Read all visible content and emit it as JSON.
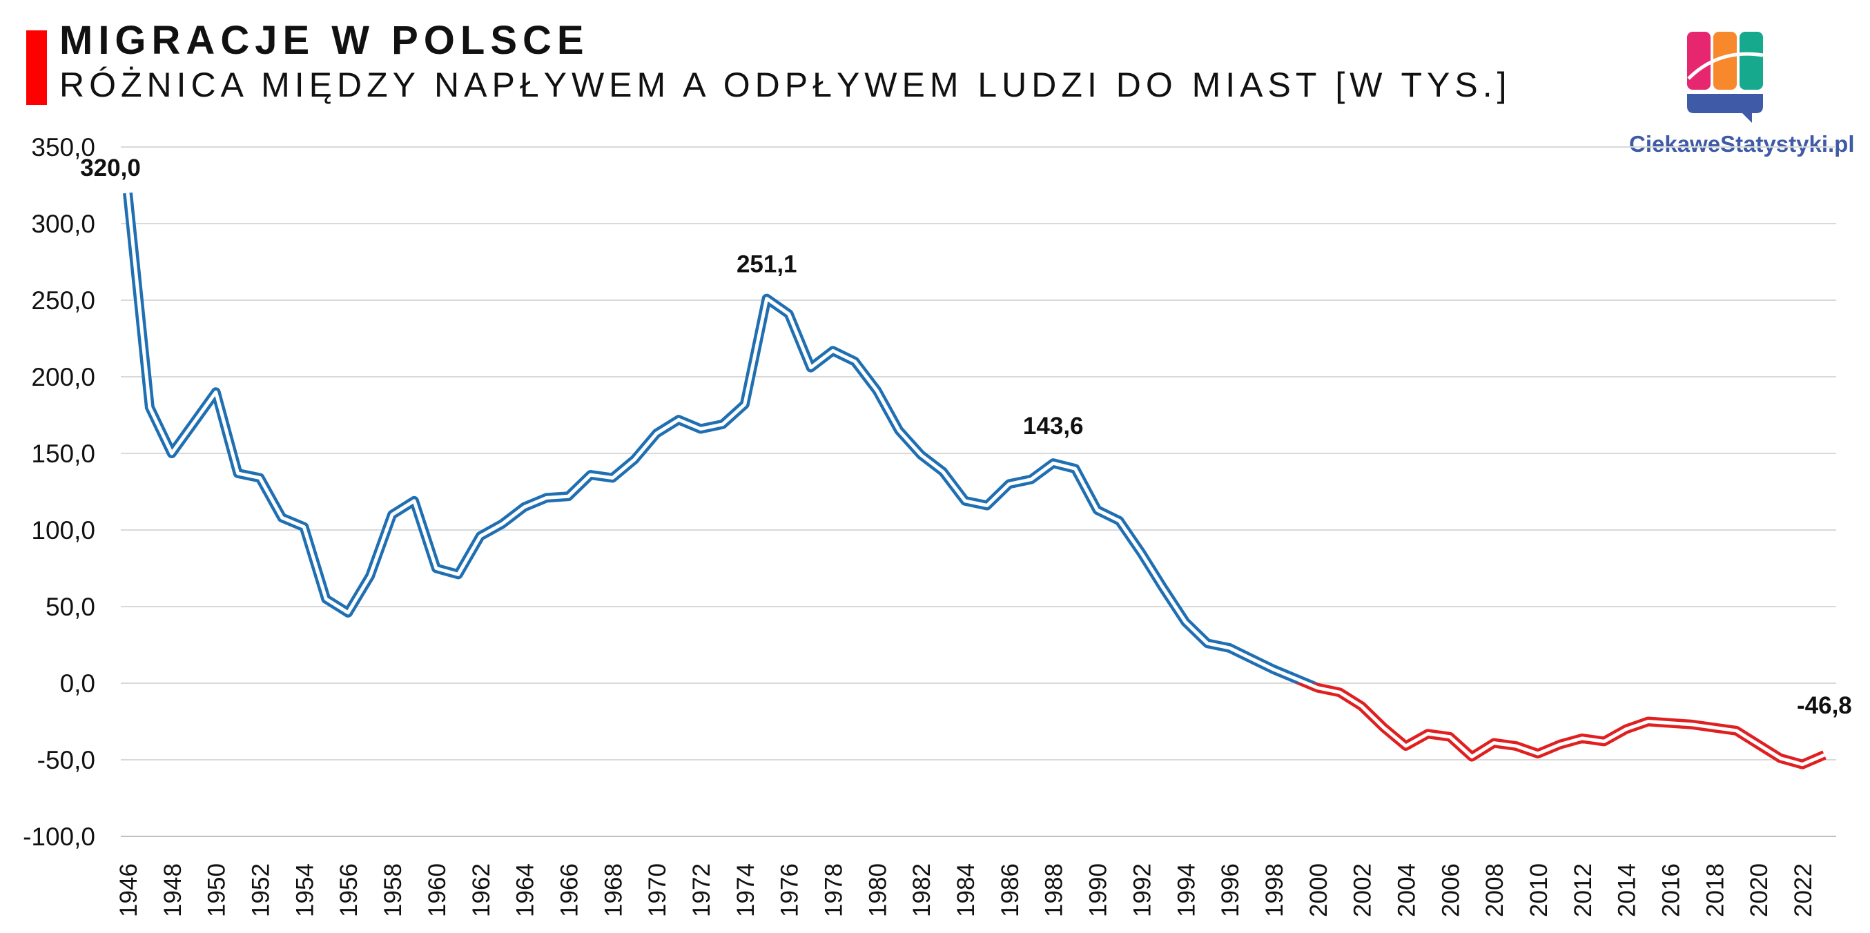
{
  "header": {
    "title": "MIGRACJE W POLSCE",
    "subtitle": "RÓŻNICA MIĘDZY NAPŁYWEM A ODPŁYWEM LUDZI DO MIAST [W TYS.]",
    "accent_color": "#ff0000"
  },
  "logo": {
    "text": "CiekaweStatystyki.pl",
    "icon": "bar-chart-logo-icon",
    "colors": [
      "#e6266e",
      "#f7892c",
      "#17a98e",
      "#3f5aa6"
    ]
  },
  "chart_data": {
    "type": "line",
    "title": "RÓŻNICA MIĘDZY NAPŁYWEM A ODPŁYWEM LUDZI DO MIAST [W TYS.]",
    "xlabel": "",
    "ylabel": "",
    "ylim": [
      -100,
      350
    ],
    "yticks": [
      350,
      300,
      250,
      200,
      150,
      100,
      50,
      0,
      -50,
      -100
    ],
    "ytick_labels": [
      "350,0",
      "300,0",
      "250,0",
      "200,0",
      "150,0",
      "100,0",
      "50,0",
      "0,0",
      "-50,0",
      "-100,0"
    ],
    "xlim": [
      1946,
      2023
    ],
    "xticks": [
      1946,
      1948,
      1950,
      1952,
      1954,
      1956,
      1958,
      1960,
      1962,
      1964,
      1966,
      1968,
      1970,
      1972,
      1974,
      1976,
      1978,
      1980,
      1982,
      1984,
      1986,
      1988,
      1990,
      1992,
      1994,
      1996,
      1998,
      2000,
      2002,
      2004,
      2006,
      2008,
      2010,
      2012,
      2014,
      2016,
      2018,
      2020,
      2022
    ],
    "grid": true,
    "legend": "none",
    "positive_color": "#1f6fb2",
    "negative_color": "#e02020",
    "x": [
      1946,
      1947,
      1948,
      1949,
      1950,
      1951,
      1952,
      1953,
      1954,
      1955,
      1956,
      1957,
      1958,
      1959,
      1960,
      1961,
      1962,
      1963,
      1964,
      1965,
      1966,
      1967,
      1968,
      1969,
      1970,
      1971,
      1972,
      1973,
      1974,
      1975,
      1976,
      1977,
      1978,
      1979,
      1980,
      1981,
      1982,
      1983,
      1984,
      1985,
      1986,
      1987,
      1988,
      1989,
      1990,
      1991,
      1992,
      1993,
      1994,
      1995,
      1996,
      1997,
      1998,
      1999,
      2000,
      2001,
      2002,
      2003,
      2004,
      2005,
      2006,
      2007,
      2008,
      2009,
      2010,
      2011,
      2012,
      2013,
      2014,
      2015,
      2016,
      2017,
      2018,
      2019,
      2020,
      2021,
      2022,
      2023
    ],
    "y": [
      320.0,
      180,
      150,
      170,
      190,
      137,
      134,
      108,
      102,
      55,
      46,
      70,
      110,
      119,
      75,
      71,
      96,
      104,
      115,
      121,
      122,
      136,
      134,
      146,
      163,
      172,
      166,
      169,
      182,
      251.1,
      241,
      206,
      217,
      210,
      191,
      165,
      149,
      138,
      119,
      116,
      130,
      133,
      143.6,
      140,
      113,
      106,
      85,
      62,
      40,
      26,
      23,
      16,
      9,
      3,
      -3,
      -6,
      -15,
      -29,
      -41,
      -33,
      -35,
      -48,
      -39,
      -41,
      -46,
      -40,
      -36,
      -38,
      -30,
      -25,
      -26,
      -27,
      -29,
      -31,
      -40,
      -49,
      -53,
      -46.8
    ],
    "annotations": [
      {
        "x": 1946,
        "y": 320.0,
        "label": "320,0"
      },
      {
        "x": 1975,
        "y": 251.1,
        "label": "251,1"
      },
      {
        "x": 1988,
        "y": 143.6,
        "label": "143,6"
      },
      {
        "x": 2023,
        "y": -46.8,
        "label": "-46,8"
      }
    ]
  }
}
